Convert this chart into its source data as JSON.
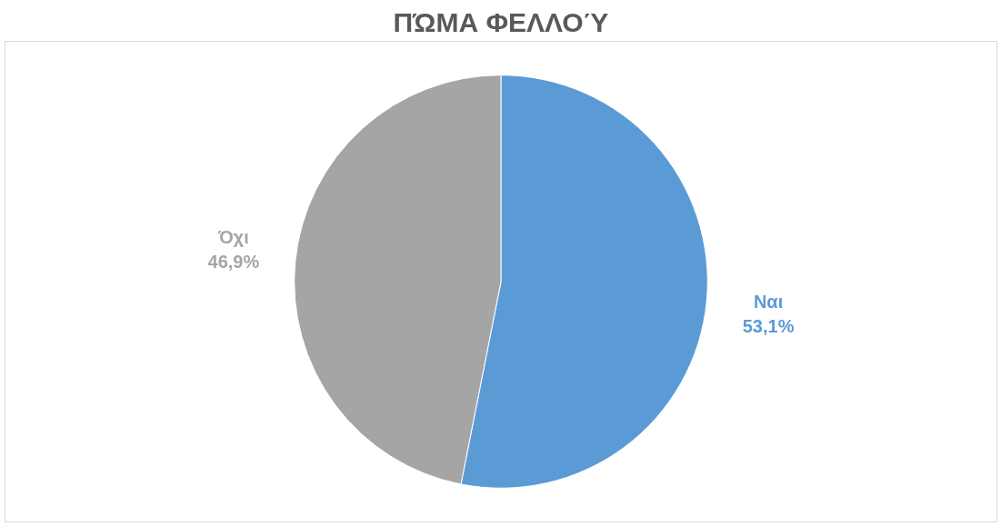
{
  "chart_data": {
    "type": "pie",
    "title": "ΠΏΜΑ ΦΕΛΛΟΎ",
    "categories": [
      "Ναι",
      "Όχι"
    ],
    "values": [
      53.1,
      46.9
    ],
    "colors": [
      "#5b9bd5",
      "#a5a5a5"
    ],
    "value_labels": [
      "53,1%",
      "46,9%"
    ]
  }
}
